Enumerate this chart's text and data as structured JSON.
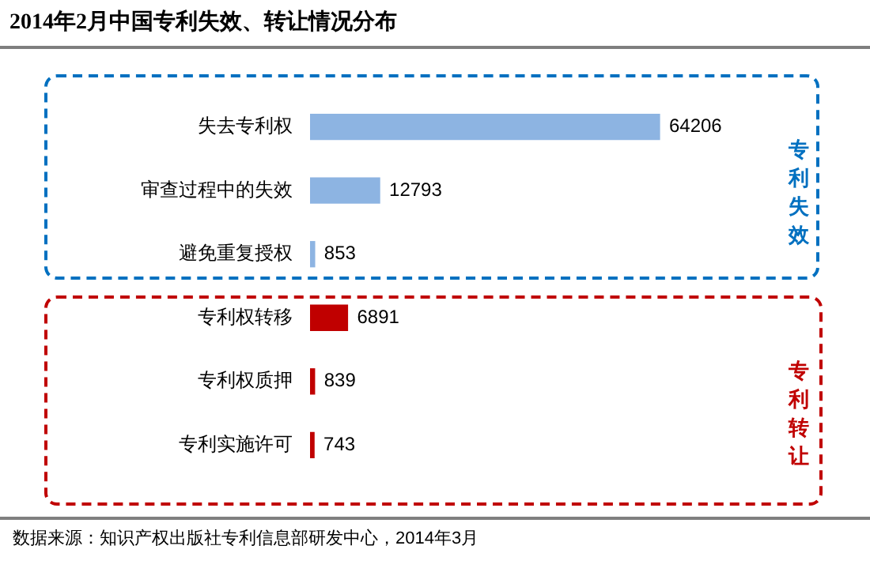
{
  "chart_data": {
    "type": "bar",
    "orientation": "horizontal",
    "title": "2014年2月中国专利失效、转让情况分布",
    "categories": [
      "失去专利权",
      "审查过程中的失效",
      "避免重复授权",
      "专利权转移",
      "专利权质押",
      "专利实施许可"
    ],
    "values": [
      64206,
      12793,
      853,
      6891,
      839,
      743
    ],
    "colors": [
      "#8db4e2",
      "#8db4e2",
      "#8db4e2",
      "#c00000",
      "#c00000",
      "#c00000"
    ],
    "data_labels": true,
    "legend": false,
    "tick_labels": "y",
    "annotations": [
      "专利失效",
      "专利转让",
      "数据来源：知识产权出版社专利信息部研发中心，2014年3月"
    ]
  }
}
